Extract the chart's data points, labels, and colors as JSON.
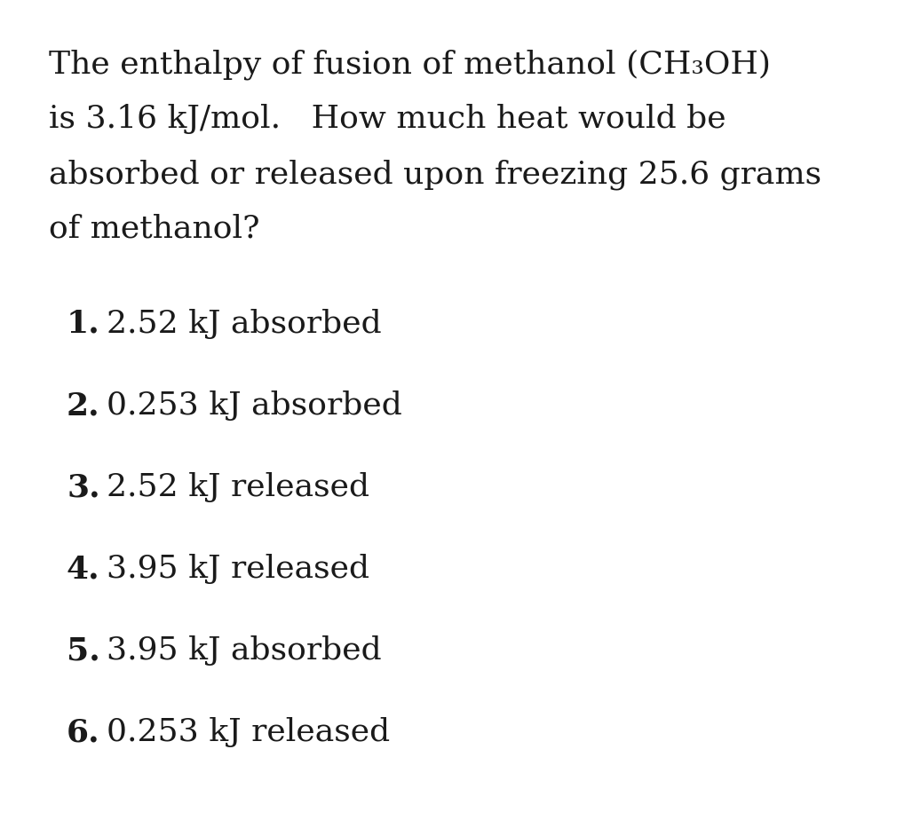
{
  "background_color": "#ffffff",
  "question_lines": [
    "The enthalpy of fusion of methanol (CH₃OH)",
    "is 3.16 kJ/mol.   How much heat would be",
    "absorbed or released upon freezing 25.6 grams",
    "of methanol?"
  ],
  "options": [
    {
      "num": "1.",
      "text": "2.52 kJ absorbed"
    },
    {
      "num": "2.",
      "text": "0.253 kJ absorbed"
    },
    {
      "num": "3.",
      "text": "2.52 kJ released"
    },
    {
      "num": "4.",
      "text": "3.95 kJ released"
    },
    {
      "num": "5.",
      "text": "3.95 kJ absorbed"
    },
    {
      "num": "6.",
      "text": "0.253 kJ released"
    }
  ],
  "question_fontsize": 26,
  "option_fontsize": 26,
  "text_color": "#1a1a1a",
  "fig_width": 10.27,
  "fig_height": 9.42,
  "dpi": 100
}
